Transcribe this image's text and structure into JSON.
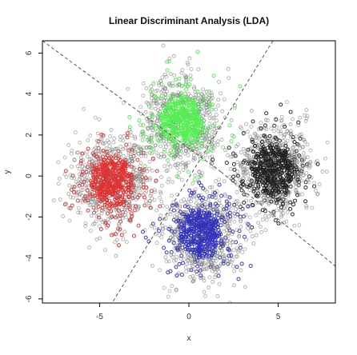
{
  "chart_data": {
    "type": "scatter",
    "title": "Linear Discriminant Analysis (LDA)",
    "xlabel": "x",
    "ylabel": "y",
    "xlim": [
      -8.2,
      8.2
    ],
    "ylim": [
      -6.2,
      6.6
    ],
    "x_ticks": [
      -5,
      0,
      5
    ],
    "y_ticks": [
      -6,
      -4,
      -2,
      0,
      2,
      4,
      6
    ],
    "x_tick_labels": [
      "-5",
      "0",
      "5"
    ],
    "y_tick_labels": [
      "-6",
      "-4",
      "-2",
      "0",
      "2",
      "4",
      "6"
    ],
    "grid": false,
    "legend": "none",
    "plot_border_color": "#000000",
    "point_style": "open circles",
    "misclassified_point_color": "#888888",
    "series": [
      {
        "color": "#55ee55",
        "center": [
          -0.4,
          2.7
        ],
        "spread": [
          1.0,
          1.0
        ],
        "approx_points": 1000
      },
      {
        "color": "#222222",
        "center": [
          4.7,
          0.3
        ],
        "spread": [
          1.0,
          1.0
        ],
        "approx_points": 1000
      },
      {
        "color": "#dd3333",
        "center": [
          -4.3,
          -0.3
        ],
        "spread": [
          1.0,
          1.0
        ],
        "approx_points": 1000
      },
      {
        "color": "#3333bb",
        "center": [
          0.7,
          -2.8
        ],
        "spread": [
          1.0,
          1.0
        ],
        "approx_points": 1000
      }
    ],
    "decision_boundaries": [
      {
        "from": [
          -8.2,
          6.6
        ],
        "to": [
          1.8,
          0.2
        ]
      },
      {
        "from": [
          4.7,
          6.6
        ],
        "to": [
          -4.3,
          -6.2
        ]
      },
      {
        "from": [
          1.8,
          0.2
        ],
        "to": [
          8.2,
          -4.4
        ]
      }
    ]
  }
}
